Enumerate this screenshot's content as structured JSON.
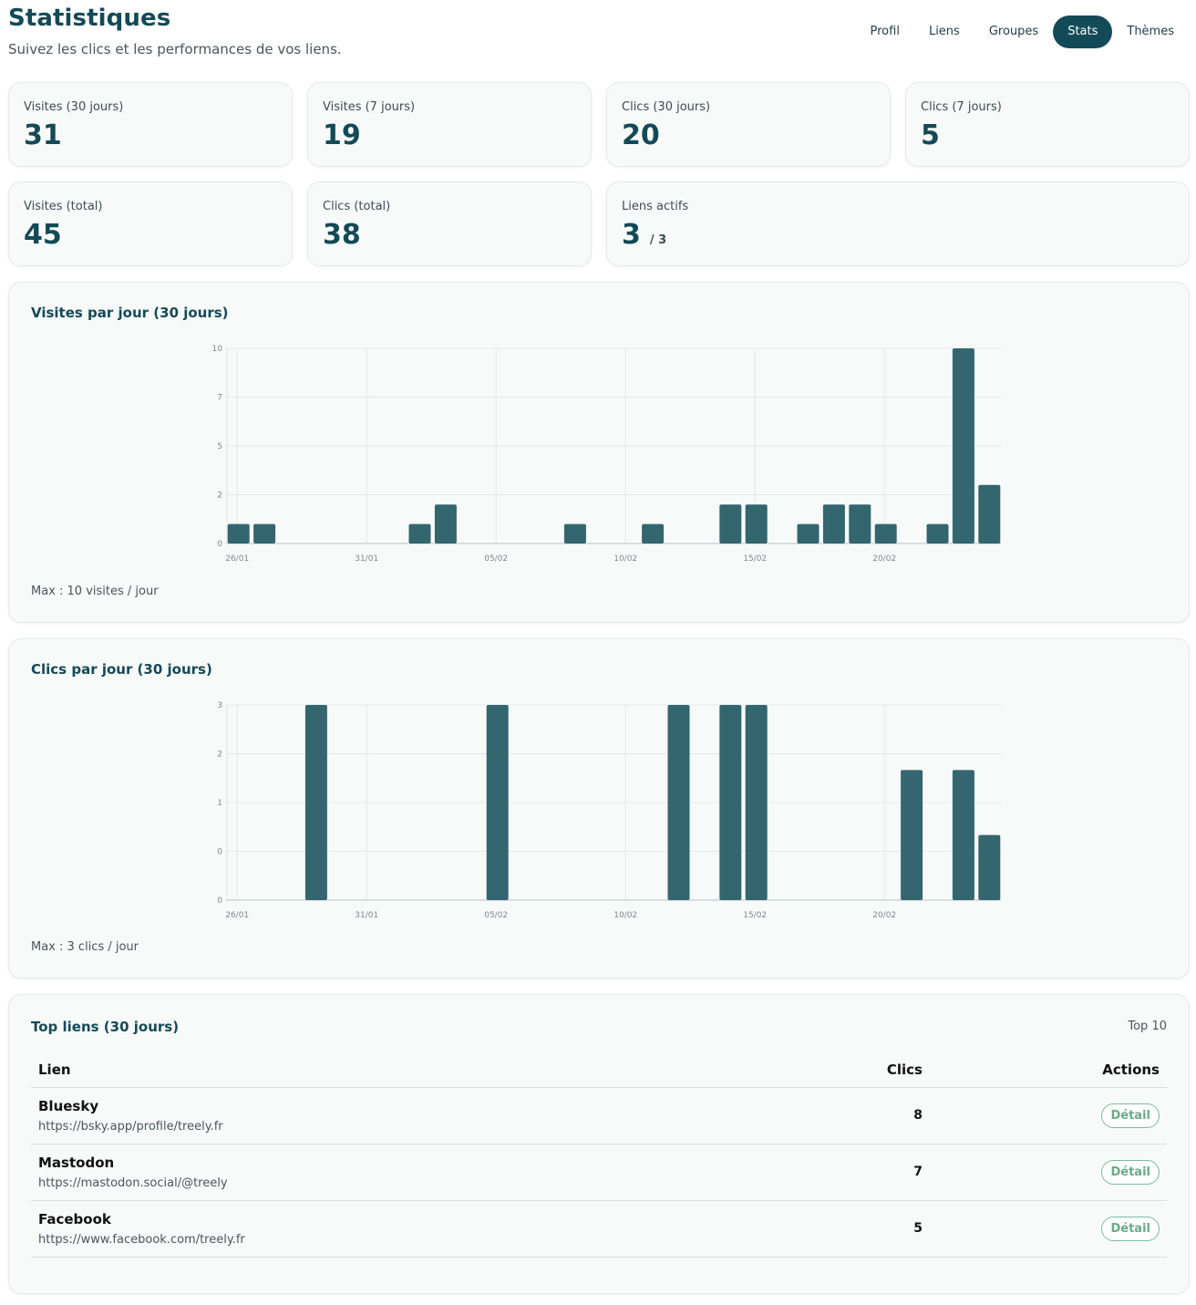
{
  "header": {
    "title": "Statistiques",
    "subtitle": "Suivez les clics et les performances de vos liens."
  },
  "nav": [
    {
      "label": "Profil",
      "active": false
    },
    {
      "label": "Liens",
      "active": false
    },
    {
      "label": "Groupes",
      "active": false
    },
    {
      "label": "Stats",
      "active": true
    },
    {
      "label": "Thèmes",
      "active": false
    }
  ],
  "stats": {
    "visits_30": {
      "label": "Visites (30 jours)",
      "value": "31"
    },
    "visits_7": {
      "label": "Visites (7 jours)",
      "value": "19"
    },
    "clicks_30": {
      "label": "Clics (30 jours)",
      "value": "20"
    },
    "clicks_7": {
      "label": "Clics (7 jours)",
      "value": "5"
    },
    "visits_total": {
      "label": "Visites (total)",
      "value": "45"
    },
    "clicks_total": {
      "label": "Clics (total)",
      "value": "38"
    },
    "active_links": {
      "label": "Liens actifs",
      "value": "3",
      "suffix": "/ 3"
    }
  },
  "visits_panel": {
    "title": "Visites par jour (30 jours)",
    "note": "Max : 10 visites / jour"
  },
  "clicks_panel": {
    "title": "Clics par jour (30 jours)",
    "note": "Max : 3 clics / jour"
  },
  "top_links": {
    "title": "Top liens (30 jours)",
    "badge": "Top 10",
    "columns": {
      "link": "Lien",
      "clicks": "Clics",
      "actions": "Actions"
    },
    "rows": [
      {
        "name": "Bluesky",
        "url": "https://bsky.app/profile/treely.fr",
        "clicks": "8",
        "action": "Détail"
      },
      {
        "name": "Mastodon",
        "url": "https://mastodon.social/@treely",
        "clicks": "7",
        "action": "Détail"
      },
      {
        "name": "Facebook",
        "url": "https://www.facebook.com/treely.fr",
        "clicks": "5",
        "action": "Détail"
      }
    ]
  },
  "colors": {
    "brand": "#134a57",
    "bar": "#33666f",
    "button_accent": "#6aa98a"
  },
  "chart_data": [
    {
      "type": "bar",
      "title": "Visites par jour (30 jours)",
      "categories": [
        "26/01",
        "27/01",
        "28/01",
        "29/01",
        "30/01",
        "31/01",
        "01/02",
        "02/02",
        "03/02",
        "04/02",
        "05/02",
        "06/02",
        "07/02",
        "08/02",
        "09/02",
        "10/02",
        "11/02",
        "12/02",
        "13/02",
        "14/02",
        "15/02",
        "16/02",
        "17/02",
        "18/02",
        "19/02",
        "20/02",
        "21/02",
        "22/02",
        "23/02",
        "24/02"
      ],
      "x_tick_labels": [
        "26/01",
        "31/01",
        "05/02",
        "10/02",
        "15/02",
        "20/02"
      ],
      "values": [
        1,
        1,
        0,
        0,
        0,
        0,
        0,
        1,
        2,
        0,
        0,
        0,
        0,
        1,
        0,
        0,
        1,
        0,
        0,
        2,
        2,
        0,
        1,
        2,
        2,
        1,
        0,
        1,
        10,
        3
      ],
      "y_tick_labels": [
        "0",
        "2",
        "5",
        "7",
        "10"
      ],
      "ylim": [
        0,
        10
      ],
      "grid": true
    },
    {
      "type": "bar",
      "title": "Clics par jour (30 jours)",
      "categories": [
        "26/01",
        "27/01",
        "28/01",
        "29/01",
        "30/01",
        "31/01",
        "01/02",
        "02/02",
        "03/02",
        "04/02",
        "05/02",
        "06/02",
        "07/02",
        "08/02",
        "09/02",
        "10/02",
        "11/02",
        "12/02",
        "13/02",
        "14/02",
        "15/02",
        "16/02",
        "17/02",
        "18/02",
        "19/02",
        "20/02",
        "21/02",
        "22/02",
        "23/02",
        "24/02"
      ],
      "x_tick_labels": [
        "26/01",
        "31/01",
        "05/02",
        "10/02",
        "15/02",
        "20/02"
      ],
      "values": [
        0,
        0,
        0,
        3,
        0,
        0,
        0,
        0,
        0,
        0,
        3,
        0,
        0,
        0,
        0,
        0,
        0,
        3,
        0,
        3,
        3,
        0,
        0,
        0,
        0,
        0,
        2,
        0,
        2,
        1
      ],
      "y_tick_labels": [
        "0",
        "0",
        "1",
        "2",
        "3"
      ],
      "ylim": [
        0,
        3
      ],
      "grid": true
    }
  ]
}
